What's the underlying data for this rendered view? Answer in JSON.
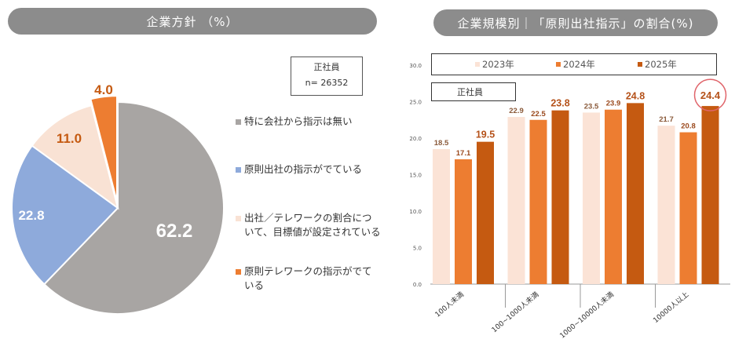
{
  "left_panel": {
    "title": "企業方針 （%）",
    "note": {
      "line1": "正社員",
      "line2": "n= 26352"
    },
    "legend": [
      {
        "label": "特に会社から指示は無い",
        "color": "#a8a5a3"
      },
      {
        "label": "原則出社の指示がでている",
        "color": "#8eaadb"
      },
      {
        "label": "出社／テレワークの割合について、目標値が設定されている",
        "color": "#f9e2d4"
      },
      {
        "label": "原則テレワークの指示がでている",
        "color": "#ed7d31"
      }
    ]
  },
  "right_panel": {
    "title": "企業規模別｜「原則出社指示」の割合(%)",
    "subtitle_box": "正社員"
  },
  "chart_data": [
    {
      "type": "pie",
      "unit": "%",
      "slices": [
        {
          "label": "特に会社から指示は無い",
          "value": 62.2,
          "color": "#a8a5a3"
        },
        {
          "label": "原則出社の指示がでている",
          "value": 22.8,
          "color": "#8eaadb"
        },
        {
          "label": "出社／テレワークの割合について、目標値が設定されている",
          "value": 11.0,
          "color": "#f9e2d4"
        },
        {
          "label": "原則テレワークの指示がでている",
          "value": 4.0,
          "color": "#ed7d31"
        }
      ]
    },
    {
      "type": "bar",
      "categories": [
        "100人未満",
        "100~1000人未満",
        "1000~10000人未満",
        "10000人以上"
      ],
      "series": [
        {
          "name": "2023年",
          "values": [
            18.5,
            22.9,
            23.5,
            21.7
          ],
          "color": "#fbe3d6"
        },
        {
          "name": "2024年",
          "values": [
            17.1,
            22.5,
            23.9,
            20.8
          ],
          "color": "#ed7d31"
        },
        {
          "name": "2025年",
          "values": [
            19.5,
            23.8,
            24.8,
            24.4
          ],
          "color": "#c55a11"
        }
      ],
      "yticks": [
        "0.0",
        "5.0",
        "10.0",
        "15.0",
        "20.0",
        "25.0",
        "30.0"
      ],
      "ylim": [
        0,
        30
      ],
      "legend_position": "top",
      "highlight": {
        "category": "10000人以上",
        "series": "2025年"
      }
    }
  ]
}
